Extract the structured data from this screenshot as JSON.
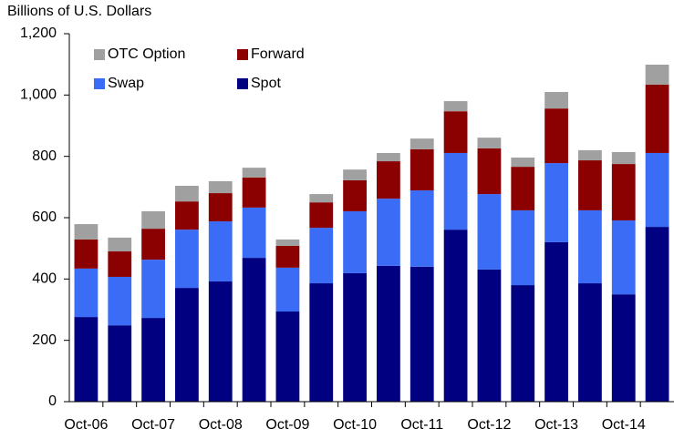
{
  "chart_data": {
    "type": "stacked_bar",
    "y_axis_label": "Billions of U.S. Dollars",
    "categories": [
      "Oct-06",
      null,
      "Oct-07",
      null,
      "Oct-08",
      null,
      "Oct-09",
      null,
      "Oct-10",
      null,
      "Oct-11",
      null,
      "Oct-12",
      null,
      "Oct-13",
      null,
      "Oct-14",
      null
    ],
    "series": [
      {
        "name": "Spot",
        "color": "#000080",
        "values": [
          276,
          249,
          273,
          371,
          392,
          469,
          294,
          386,
          419,
          443,
          440,
          561,
          431,
          380,
          520,
          386,
          350,
          570
        ]
      },
      {
        "name": "Swap",
        "color": "#3b6cf5",
        "values": [
          158,
          158,
          190,
          190,
          196,
          164,
          143,
          181,
          202,
          219,
          249,
          250,
          246,
          244,
          258,
          238,
          241,
          241
        ]
      },
      {
        "name": "Forward",
        "color": "#8b0000",
        "values": [
          95,
          83,
          101,
          92,
          92,
          98,
          71,
          83,
          101,
          122,
          134,
          136,
          149,
          142,
          178,
          163,
          184,
          223
        ]
      },
      {
        "name": "OTC Option",
        "color": "#a0a0a0",
        "values": [
          50,
          45,
          57,
          51,
          39,
          32,
          21,
          27,
          35,
          27,
          35,
          33,
          35,
          30,
          54,
          33,
          39,
          65
        ]
      }
    ],
    "ylim": [
      0,
      1200
    ],
    "yticks": [
      0,
      200,
      400,
      600,
      800,
      {
        "value": 1000,
        "label": "1,000"
      },
      {
        "value": 1200,
        "label": "1,200"
      }
    ],
    "grid": false,
    "legend": "top-left"
  }
}
